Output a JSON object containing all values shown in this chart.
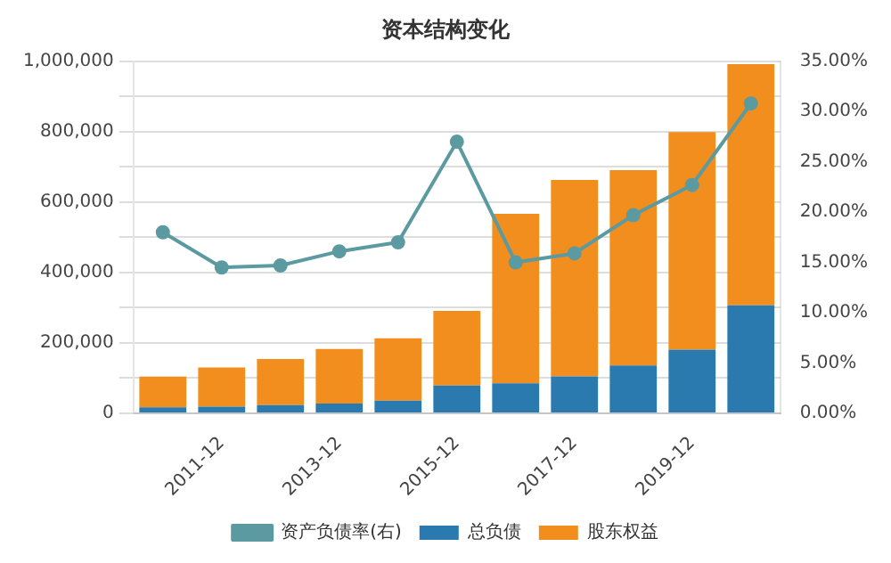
{
  "chart_data": {
    "type": "bar",
    "title": "资本结构变化",
    "stacked": true,
    "categories": [
      null,
      "2011-12",
      null,
      "2013-12",
      null,
      "2015-12",
      null,
      "2017-12",
      null,
      "2019-12",
      null
    ],
    "series": [
      {
        "name": "总负债",
        "color": "#2a7ab0",
        "values": [
          17000,
          19000,
          23000,
          28000,
          36000,
          79000,
          85000,
          105000,
          136000,
          181000,
          307000
        ]
      },
      {
        "name": "股东权益",
        "color": "#f28e1e",
        "values": [
          87000,
          111000,
          131000,
          155000,
          177000,
          212000,
          482000,
          558000,
          555000,
          618000,
          685000
        ]
      },
      {
        "name": "资产负债率(右)",
        "type": "line",
        "axis": "y2",
        "color": "#5b9aa0",
        "values": [
          18,
          14.5,
          14.7,
          16.1,
          17,
          27,
          15,
          15.9,
          19.7,
          22.7,
          30.8
        ]
      }
    ],
    "ylim": [
      0,
      1000000
    ],
    "yticks": [
      0,
      {
        "value": 200000,
        "label": "200,000"
      },
      {
        "value": 400000,
        "label": "400,000"
      },
      {
        "value": 600000,
        "label": "600,000"
      },
      {
        "value": 800000,
        "label": "800,000"
      },
      {
        "value": 1000000,
        "label": "1,000,000"
      }
    ],
    "y2lim": [
      0,
      35
    ],
    "y2ticks": [
      {
        "value": 0,
        "label": "0.00%"
      },
      {
        "value": 5,
        "label": "5.00%"
      },
      {
        "value": 10,
        "label": "10.00%"
      },
      {
        "value": 15,
        "label": "15.00%"
      },
      {
        "value": 20,
        "label": "20.00%"
      },
      {
        "value": 25,
        "label": "25.00%"
      },
      {
        "value": 30,
        "label": "30.00%"
      },
      {
        "value": 35,
        "label": "35.00%"
      }
    ],
    "grid": "y",
    "legend": "bottom",
    "marker": "circle"
  }
}
